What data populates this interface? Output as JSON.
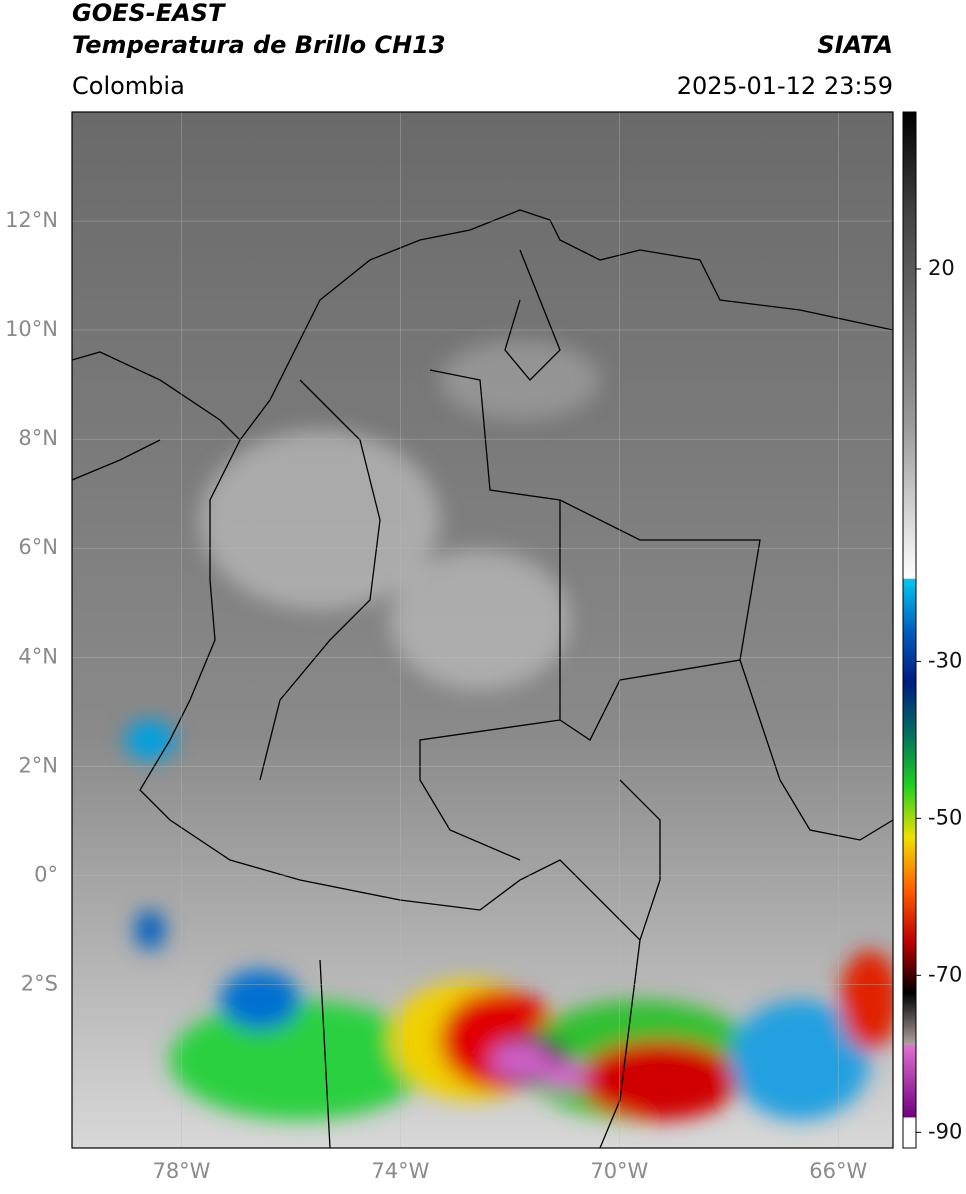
{
  "header": {
    "title": "GOES-EAST",
    "subtitle": "Temperatura de Brillo CH13",
    "source": "SIATA",
    "region": "Colombia",
    "datetime": "2025-01-12 23:59"
  },
  "map": {
    "xlim": [
      -80,
      -65
    ],
    "ylim": [
      -5,
      14
    ],
    "xticks": [
      {
        "value": -78,
        "label": "78°W"
      },
      {
        "value": -74,
        "label": "74°W"
      },
      {
        "value": -70,
        "label": "70°W"
      },
      {
        "value": -66,
        "label": "66°W"
      }
    ],
    "yticks": [
      {
        "value": 12,
        "label": "12°N"
      },
      {
        "value": 10,
        "label": "10°N"
      },
      {
        "value": 8,
        "label": "8°N"
      },
      {
        "value": 6,
        "label": "6°N"
      },
      {
        "value": 4,
        "label": "4°N"
      },
      {
        "value": 2,
        "label": "2°N"
      },
      {
        "value": 0,
        "label": "0°"
      },
      {
        "value": -2,
        "label": "2°S"
      }
    ]
  },
  "colorbar": {
    "lim": [
      -92,
      40
    ],
    "ticks": [
      20,
      -30,
      -50,
      -70,
      -90
    ]
  }
}
